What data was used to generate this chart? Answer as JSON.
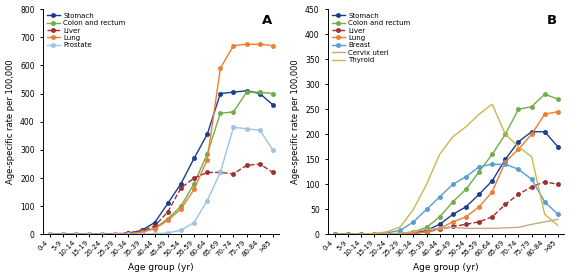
{
  "age_groups": [
    "0-4",
    "5-9",
    "10-14",
    "15-19",
    "20-24",
    "25-29",
    "30-34",
    "35-39",
    "40-44",
    "45-49",
    "50-54",
    "55-59",
    "60-64",
    "65-69",
    "70-74",
    "75-79",
    "80-84",
    ">85"
  ],
  "panel_A": {
    "title": "A",
    "ylabel": "Age-specific rate per 100,000",
    "xlabel": "Age group (yr)",
    "ylim": [
      0,
      800
    ],
    "yticks": [
      0,
      100,
      200,
      300,
      400,
      500,
      600,
      700,
      800
    ],
    "series": [
      {
        "name": "Stomach",
        "color": "#1a3d8f",
        "marker": "o",
        "linestyle": "-",
        "values": [
          0.5,
          0.3,
          0.3,
          0.5,
          0.8,
          1.5,
          4,
          14,
          42,
          110,
          180,
          270,
          355,
          500,
          505,
          510,
          500,
          460
        ]
      },
      {
        "name": "Colon and rectum",
        "color": "#70ad47",
        "marker": "o",
        "linestyle": "-",
        "values": [
          0.5,
          0.3,
          0.3,
          0.5,
          0.8,
          1.5,
          3,
          8,
          22,
          55,
          100,
          180,
          285,
          430,
          435,
          505,
          505,
          500
        ]
      },
      {
        "name": "Liver",
        "color": "#9e3030",
        "marker": "o",
        "linestyle": "--",
        "values": [
          0.5,
          0.3,
          0.3,
          0.5,
          1,
          2,
          5,
          12,
          30,
          80,
          165,
          200,
          220,
          220,
          215,
          245,
          250,
          220
        ]
      },
      {
        "name": "Lung",
        "color": "#ed7d31",
        "marker": "o",
        "linestyle": "-",
        "values": [
          0.5,
          0.3,
          0.3,
          0.5,
          0.8,
          1.5,
          3,
          8,
          20,
          50,
          90,
          160,
          265,
          590,
          670,
          675,
          675,
          670
        ]
      },
      {
        "name": "Prostate",
        "color": "#9dc3e6",
        "marker": "o",
        "linestyle": "-",
        "values": [
          0,
          0,
          0,
          0,
          0,
          0,
          0.5,
          1,
          2,
          5,
          15,
          42,
          120,
          220,
          380,
          375,
          370,
          300
        ]
      }
    ]
  },
  "panel_B": {
    "title": "B",
    "ylabel": "Age-specific rate per 100,000",
    "xlabel": "Age group (yr)",
    "ylim": [
      0,
      450
    ],
    "yticks": [
      0,
      50,
      100,
      150,
      200,
      250,
      300,
      350,
      400,
      450
    ],
    "series": [
      {
        "name": "Stomach",
        "color": "#1a3d8f",
        "marker": "o",
        "linestyle": "-",
        "values": [
          0.3,
          0.3,
          0.3,
          0.5,
          0.8,
          1.5,
          3,
          8,
          20,
          40,
          55,
          80,
          107,
          150,
          185,
          205,
          205,
          175
        ]
      },
      {
        "name": "Colon and rectum",
        "color": "#70ad47",
        "marker": "o",
        "linestyle": "-",
        "values": [
          0.3,
          0.3,
          0.3,
          0.5,
          0.8,
          2,
          5,
          14,
          35,
          65,
          90,
          125,
          160,
          200,
          250,
          255,
          280,
          270
        ]
      },
      {
        "name": "Liver",
        "color": "#9e3030",
        "marker": "o",
        "linestyle": "--",
        "values": [
          0.3,
          0.3,
          0.3,
          0.5,
          0.5,
          1,
          2,
          5,
          10,
          16,
          20,
          25,
          35,
          60,
          80,
          95,
          105,
          100
        ]
      },
      {
        "name": "Lung",
        "color": "#ed7d31",
        "marker": "o",
        "linestyle": "-",
        "values": [
          0.3,
          0.3,
          0.3,
          0.5,
          0.5,
          1,
          2,
          5,
          12,
          25,
          35,
          55,
          85,
          145,
          170,
          200,
          240,
          245
        ]
      },
      {
        "name": "Breast",
        "color": "#5a9bd5",
        "marker": "o",
        "linestyle": "-",
        "values": [
          0,
          0,
          0.5,
          1,
          3,
          8,
          25,
          50,
          75,
          100,
          115,
          135,
          140,
          140,
          130,
          110,
          65,
          40
        ]
      },
      {
        "name": "Cervix uteri",
        "color": "#c8a882",
        "marker": null,
        "linestyle": "-",
        "values": [
          0,
          0,
          0,
          0.5,
          1,
          2,
          5,
          10,
          12,
          14,
          12,
          12,
          12,
          13,
          14,
          20,
          25,
          30
        ]
      },
      {
        "name": "Thyroid",
        "color": "#c8b84a",
        "marker": null,
        "linestyle": "-",
        "values": [
          0.3,
          0.5,
          1,
          2,
          5,
          15,
          50,
          100,
          160,
          195,
          215,
          240,
          260,
          200,
          175,
          155,
          40,
          18
        ]
      }
    ]
  },
  "background_color": "#ffffff",
  "fontsize": 6.5,
  "linewidth": 1.0,
  "markersize": 3.0
}
